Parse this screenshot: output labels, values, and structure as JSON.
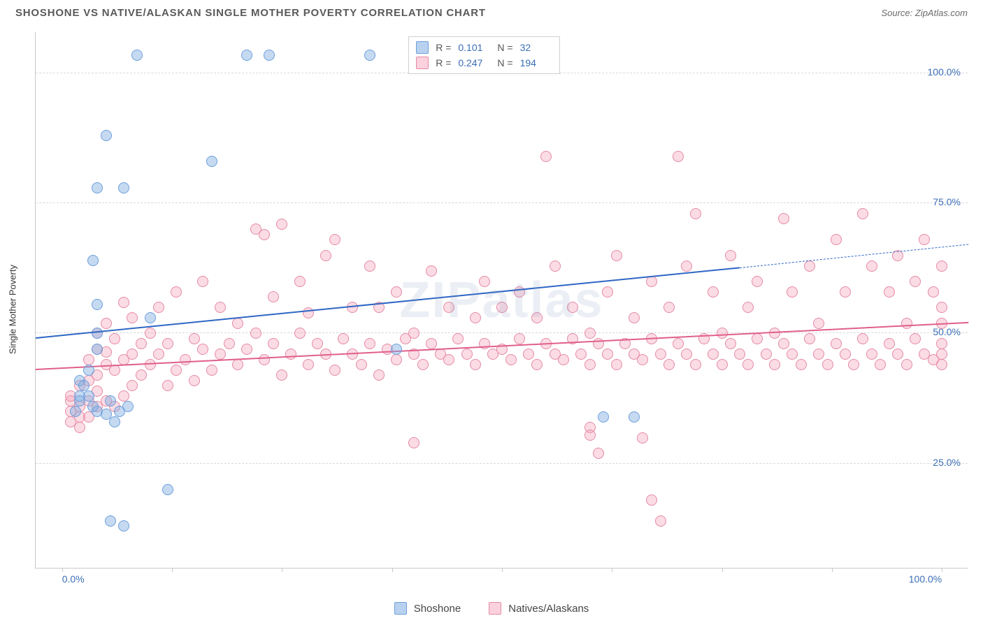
{
  "header": {
    "title": "SHOSHONE VS NATIVE/ALASKAN SINGLE MOTHER POVERTY CORRELATION CHART",
    "source_prefix": "Source: ",
    "source": "ZipAtlas.com"
  },
  "chart": {
    "type": "scatter",
    "y_label": "Single Mother Poverty",
    "watermark": "ZIPatlas",
    "background_color": "#ffffff",
    "grid_color": "#d9d9d9",
    "axis_color": "#c8c8c8",
    "tick_label_color": "#3b6fb6",
    "x_domain": [
      -3,
      103
    ],
    "y_domain": [
      5,
      108
    ],
    "x_ticks": [
      0,
      12.5,
      25,
      37.5,
      50,
      62.5,
      75,
      87.5,
      100
    ],
    "x_tick_labels": {
      "0": "0.0%",
      "100": "100.0%"
    },
    "y_gridlines": [
      25,
      50,
      75,
      100
    ],
    "y_tick_labels": {
      "25": "25.0%",
      "50": "50.0%",
      "75": "75.0%",
      "100": "100.0%"
    },
    "marker_radius": 8,
    "marker_stroke_width": 1.5,
    "series": [
      {
        "name": "Natives/Alaskans",
        "fill": "rgba(244,154,179,0.35)",
        "stroke": "#e58aa6",
        "trend_color": "#e05f8c",
        "trend": {
          "x1": -3,
          "y1": 43,
          "x2": 103,
          "y2": 52,
          "width": 2.5,
          "dash": false
        },
        "points": [
          [
            1,
            33
          ],
          [
            1,
            35
          ],
          [
            1,
            37
          ],
          [
            1,
            38
          ],
          [
            2,
            36
          ],
          [
            2,
            34
          ],
          [
            2,
            40
          ],
          [
            2,
            32
          ],
          [
            3,
            37
          ],
          [
            3,
            41
          ],
          [
            3,
            34
          ],
          [
            3,
            45
          ],
          [
            4,
            36
          ],
          [
            4,
            39
          ],
          [
            4,
            42
          ],
          [
            4,
            47
          ],
          [
            4,
            50
          ],
          [
            5,
            37
          ],
          [
            5,
            44
          ],
          [
            5,
            46.5
          ],
          [
            5,
            52
          ],
          [
            6,
            36
          ],
          [
            6,
            43
          ],
          [
            6,
            49
          ],
          [
            7,
            38
          ],
          [
            7,
            45
          ],
          [
            7,
            56
          ],
          [
            8,
            40
          ],
          [
            8,
            46
          ],
          [
            8,
            53
          ],
          [
            9,
            42
          ],
          [
            9,
            48
          ],
          [
            10,
            44
          ],
          [
            10,
            50
          ],
          [
            11,
            46
          ],
          [
            11,
            55
          ],
          [
            12,
            40
          ],
          [
            12,
            48
          ],
          [
            13,
            43
          ],
          [
            13,
            58
          ],
          [
            14,
            45
          ],
          [
            15,
            41
          ],
          [
            15,
            49
          ],
          [
            16,
            47
          ],
          [
            16,
            60
          ],
          [
            17,
            43
          ],
          [
            18,
            46
          ],
          [
            18,
            55
          ],
          [
            19,
            48
          ],
          [
            20,
            44
          ],
          [
            20,
            52
          ],
          [
            21,
            47
          ],
          [
            22,
            50
          ],
          [
            22,
            70
          ],
          [
            23,
            45
          ],
          [
            23,
            69
          ],
          [
            24,
            48
          ],
          [
            24,
            57
          ],
          [
            25,
            42
          ],
          [
            25,
            71
          ],
          [
            26,
            46
          ],
          [
            27,
            50
          ],
          [
            27,
            60
          ],
          [
            28,
            44
          ],
          [
            28,
            54
          ],
          [
            29,
            48
          ],
          [
            30,
            46
          ],
          [
            30,
            65
          ],
          [
            31,
            43
          ],
          [
            31,
            68
          ],
          [
            32,
            49
          ],
          [
            33,
            46
          ],
          [
            33,
            55
          ],
          [
            34,
            44
          ],
          [
            35,
            48
          ],
          [
            35,
            63
          ],
          [
            36,
            42
          ],
          [
            36,
            55
          ],
          [
            37,
            47
          ],
          [
            38,
            45
          ],
          [
            38,
            58
          ],
          [
            39,
            49
          ],
          [
            40,
            46
          ],
          [
            40,
            50
          ],
          [
            40,
            29
          ],
          [
            41,
            44
          ],
          [
            42,
            48
          ],
          [
            42,
            62
          ],
          [
            43,
            46
          ],
          [
            44,
            45
          ],
          [
            44,
            55
          ],
          [
            45,
            49
          ],
          [
            46,
            46
          ],
          [
            47,
            44
          ],
          [
            47,
            53
          ],
          [
            48,
            48
          ],
          [
            48,
            60
          ],
          [
            49,
            46
          ],
          [
            50,
            47
          ],
          [
            50,
            55
          ],
          [
            51,
            45
          ],
          [
            52,
            49
          ],
          [
            52,
            58
          ],
          [
            53,
            46
          ],
          [
            54,
            44
          ],
          [
            54,
            53
          ],
          [
            55,
            48
          ],
          [
            55,
            84
          ],
          [
            56,
            46
          ],
          [
            56,
            63
          ],
          [
            57,
            45
          ],
          [
            58,
            49
          ],
          [
            58,
            55
          ],
          [
            59,
            46
          ],
          [
            60,
            44
          ],
          [
            60,
            50
          ],
          [
            60,
            32
          ],
          [
            60,
            30.5
          ],
          [
            61,
            48
          ],
          [
            61,
            27
          ],
          [
            62,
            46
          ],
          [
            62,
            58
          ],
          [
            63,
            44
          ],
          [
            63,
            65
          ],
          [
            64,
            48
          ],
          [
            65,
            46
          ],
          [
            65,
            53
          ],
          [
            66,
            45
          ],
          [
            66,
            30
          ],
          [
            67,
            49
          ],
          [
            67,
            60
          ],
          [
            67,
            18
          ],
          [
            68,
            46
          ],
          [
            68,
            14
          ],
          [
            69,
            44
          ],
          [
            69,
            55
          ],
          [
            70,
            48
          ],
          [
            70,
            84
          ],
          [
            71,
            46
          ],
          [
            71,
            63
          ],
          [
            72,
            44
          ],
          [
            72,
            73
          ],
          [
            73,
            49
          ],
          [
            74,
            46
          ],
          [
            74,
            58
          ],
          [
            75,
            44
          ],
          [
            75,
            50
          ],
          [
            76,
            48
          ],
          [
            76,
            65
          ],
          [
            77,
            46
          ],
          [
            78,
            44
          ],
          [
            78,
            55
          ],
          [
            79,
            49
          ],
          [
            79,
            60
          ],
          [
            80,
            46
          ],
          [
            81,
            44
          ],
          [
            81,
            50
          ],
          [
            82,
            48
          ],
          [
            82,
            72
          ],
          [
            83,
            46
          ],
          [
            83,
            58
          ],
          [
            84,
            44
          ],
          [
            85,
            49
          ],
          [
            85,
            63
          ],
          [
            86,
            46
          ],
          [
            86,
            52
          ],
          [
            87,
            44
          ],
          [
            88,
            48
          ],
          [
            88,
            68
          ],
          [
            89,
            46
          ],
          [
            89,
            58
          ],
          [
            90,
            44
          ],
          [
            91,
            49
          ],
          [
            91,
            73
          ],
          [
            92,
            46
          ],
          [
            92,
            63
          ],
          [
            93,
            44
          ],
          [
            94,
            48
          ],
          [
            94,
            58
          ],
          [
            95,
            46
          ],
          [
            95,
            65
          ],
          [
            96,
            44
          ],
          [
            96,
            52
          ],
          [
            97,
            49
          ],
          [
            97,
            60
          ],
          [
            98,
            46
          ],
          [
            98,
            68
          ],
          [
            99,
            45
          ],
          [
            99,
            58
          ],
          [
            100,
            48
          ],
          [
            100,
            55
          ],
          [
            100,
            52
          ],
          [
            100,
            46
          ],
          [
            100,
            63
          ],
          [
            100,
            44
          ]
        ]
      },
      {
        "name": "Shoshone",
        "fill": "rgba(126,172,224,0.45)",
        "stroke": "#6d9edc",
        "trend_color": "#2f66c4",
        "trend": {
          "x1": -3,
          "y1": 49,
          "x2": 77,
          "y2": 62.5,
          "width": 2.5,
          "dash": false
        },
        "trend_ext": {
          "x1": 77,
          "y1": 62.5,
          "x2": 103,
          "y2": 67,
          "width": 1.3,
          "dash": true
        },
        "points": [
          [
            1.5,
            35
          ],
          [
            2,
            38
          ],
          [
            2,
            37
          ],
          [
            2,
            41
          ],
          [
            2.5,
            40
          ],
          [
            3,
            38
          ],
          [
            3,
            43
          ],
          [
            3.5,
            36
          ],
          [
            3.5,
            64
          ],
          [
            4,
            35
          ],
          [
            4,
            50
          ],
          [
            4,
            55.5
          ],
          [
            4,
            47
          ],
          [
            4,
            78
          ],
          [
            5,
            34.5
          ],
          [
            5,
            88
          ],
          [
            5.5,
            37
          ],
          [
            5.5,
            14
          ],
          [
            6,
            33
          ],
          [
            6.5,
            35
          ],
          [
            7,
            13
          ],
          [
            7,
            78
          ],
          [
            7.5,
            36
          ],
          [
            8.5,
            103.5
          ],
          [
            10,
            53
          ],
          [
            12,
            20
          ],
          [
            17,
            83
          ],
          [
            21,
            103.5
          ],
          [
            23.5,
            103.5
          ],
          [
            35,
            103.5
          ],
          [
            38,
            47
          ],
          [
            61.5,
            34
          ],
          [
            65,
            34
          ]
        ]
      }
    ],
    "legend_top": {
      "rows": [
        {
          "swatch_fill": "rgba(126,172,224,0.55)",
          "swatch_stroke": "#6d9edc",
          "r_label": "R =",
          "r_value": "0.101",
          "n_label": "N =",
          "n_value": "32"
        },
        {
          "swatch_fill": "rgba(244,154,179,0.45)",
          "swatch_stroke": "#e58aa6",
          "r_label": "R =",
          "r_value": "0.247",
          "n_label": "N =",
          "n_value": "194"
        }
      ]
    },
    "legend_bottom": [
      {
        "swatch_fill": "rgba(126,172,224,0.55)",
        "swatch_stroke": "#6d9edc",
        "label": "Shoshone"
      },
      {
        "swatch_fill": "rgba(244,154,179,0.45)",
        "swatch_stroke": "#e58aa6",
        "label": "Natives/Alaskans"
      }
    ]
  }
}
